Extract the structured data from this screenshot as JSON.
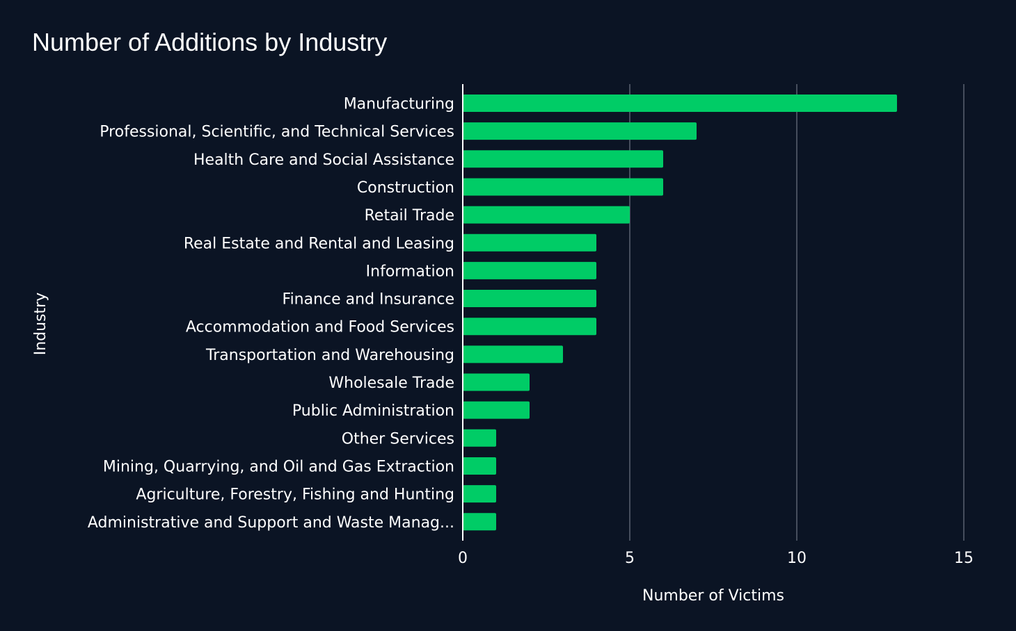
{
  "colors": {
    "background": "#0b1424",
    "bar": "#00cc66",
    "grid": "#5a6270",
    "axis": "#ffffff",
    "text": "#ffffff"
  },
  "chart_data": {
    "type": "bar",
    "orientation": "horizontal",
    "title": "Number of Additions by Industry",
    "xlabel": "Number of Victims",
    "ylabel": "Industry",
    "xlim": [
      0,
      15
    ],
    "xticks": [
      0,
      5,
      10,
      15
    ],
    "grid": "vertical",
    "categories": [
      "Manufacturing",
      "Professional, Scientific, and Technical Services",
      "Health Care and Social Assistance",
      "Construction",
      "Retail Trade",
      "Real Estate and Rental and Leasing",
      "Information",
      "Finance and Insurance",
      "Accommodation and Food Services",
      "Transportation and Warehousing",
      "Wholesale Trade",
      "Public Administration",
      "Other Services",
      "Mining, Quarrying, and Oil and Gas Extraction",
      "Agriculture, Forestry, Fishing and Hunting",
      "Administrative and Support and Waste Manag..."
    ],
    "values": [
      13,
      7,
      6,
      6,
      5,
      4,
      4,
      4,
      4,
      3,
      2,
      2,
      1,
      1,
      1,
      1
    ]
  }
}
